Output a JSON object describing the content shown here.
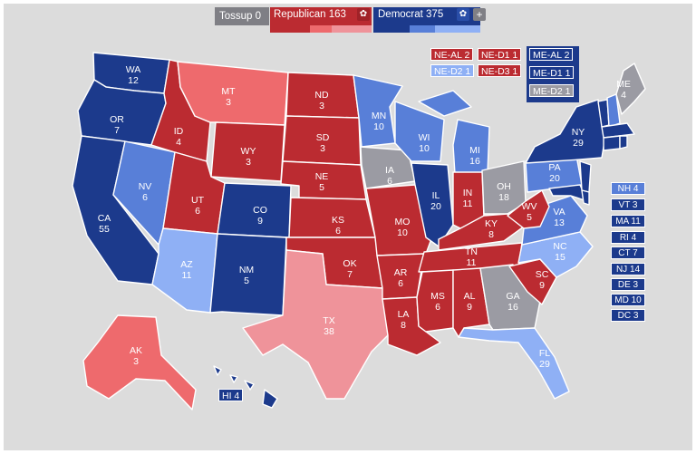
{
  "colors": {
    "safe_dem": "#1c3a8c",
    "likely_dem": "#587fd8",
    "lean_dem": "#8fb0f5",
    "safe_rep": "#bb2b31",
    "likely_rep": "#ee6a6d",
    "lean_rep": "#ef939a",
    "tossup": "#9b9ba3"
  },
  "header": {
    "tossup_label": "Tossup 0",
    "republican_label": "Republican 163",
    "democrat_label": "Democrat 375",
    "gear_icon": "gear-icon",
    "plus_icon": "plus-icon",
    "plus_glyph": "+",
    "gear_glyph": "✿"
  },
  "splits": {
    "ne_al": "NE-AL 2",
    "ne_d1": "NE-D1 1",
    "ne_d2": "NE-D2 1",
    "ne_d3": "NE-D3 1",
    "me_al": "ME-AL 2",
    "me_d1": "ME-D1 1",
    "me_d2": "ME-D2 1"
  },
  "states": {
    "WA": {
      "abbr": "WA",
      "ev": "12"
    },
    "OR": {
      "abbr": "OR",
      "ev": "7"
    },
    "CA": {
      "abbr": "CA",
      "ev": "55"
    },
    "NV": {
      "abbr": "NV",
      "ev": "6"
    },
    "ID": {
      "abbr": "ID",
      "ev": "4"
    },
    "MT": {
      "abbr": "MT",
      "ev": "3"
    },
    "WY": {
      "abbr": "WY",
      "ev": "3"
    },
    "UT": {
      "abbr": "UT",
      "ev": "6"
    },
    "AZ": {
      "abbr": "AZ",
      "ev": "11"
    },
    "CO": {
      "abbr": "CO",
      "ev": "9"
    },
    "NM": {
      "abbr": "NM",
      "ev": "5"
    },
    "ND": {
      "abbr": "ND",
      "ev": "3"
    },
    "SD": {
      "abbr": "SD",
      "ev": "3"
    },
    "NE": {
      "abbr": "NE",
      "ev": "5"
    },
    "KS": {
      "abbr": "KS",
      "ev": "6"
    },
    "OK": {
      "abbr": "OK",
      "ev": "7"
    },
    "TX": {
      "abbr": "TX",
      "ev": "38"
    },
    "MN": {
      "abbr": "MN",
      "ev": "10"
    },
    "IA": {
      "abbr": "IA",
      "ev": "6"
    },
    "MO": {
      "abbr": "MO",
      "ev": "10"
    },
    "AR": {
      "abbr": "AR",
      "ev": "6"
    },
    "LA": {
      "abbr": "LA",
      "ev": "8"
    },
    "WI": {
      "abbr": "WI",
      "ev": "10"
    },
    "IL": {
      "abbr": "IL",
      "ev": "20"
    },
    "MI": {
      "abbr": "MI",
      "ev": "16"
    },
    "IN": {
      "abbr": "IN",
      "ev": "11"
    },
    "OH": {
      "abbr": "OH",
      "ev": "18"
    },
    "KY": {
      "abbr": "KY",
      "ev": "8"
    },
    "TN": {
      "abbr": "TN",
      "ev": "11"
    },
    "MS": {
      "abbr": "MS",
      "ev": "6"
    },
    "AL": {
      "abbr": "AL",
      "ev": "9"
    },
    "GA": {
      "abbr": "GA",
      "ev": "16"
    },
    "FL": {
      "abbr": "FL",
      "ev": "29"
    },
    "SC": {
      "abbr": "SC",
      "ev": "9"
    },
    "NC": {
      "abbr": "NC",
      "ev": "15"
    },
    "VA": {
      "abbr": "VA",
      "ev": "13"
    },
    "WV": {
      "abbr": "WV",
      "ev": "5"
    },
    "PA": {
      "abbr": "PA",
      "ev": "20"
    },
    "NY": {
      "abbr": "NY",
      "ev": "29"
    },
    "ME": {
      "abbr": "ME",
      "ev": "4"
    },
    "AK": {
      "abbr": "AK",
      "ev": "3"
    }
  },
  "hawaii_label": "HI 4",
  "small_states": [
    "NH 4",
    "VT 3",
    "MA 11",
    "RI 4",
    "CT 7",
    "NJ 14",
    "DE 3",
    "MD 10",
    "DC 3"
  ]
}
